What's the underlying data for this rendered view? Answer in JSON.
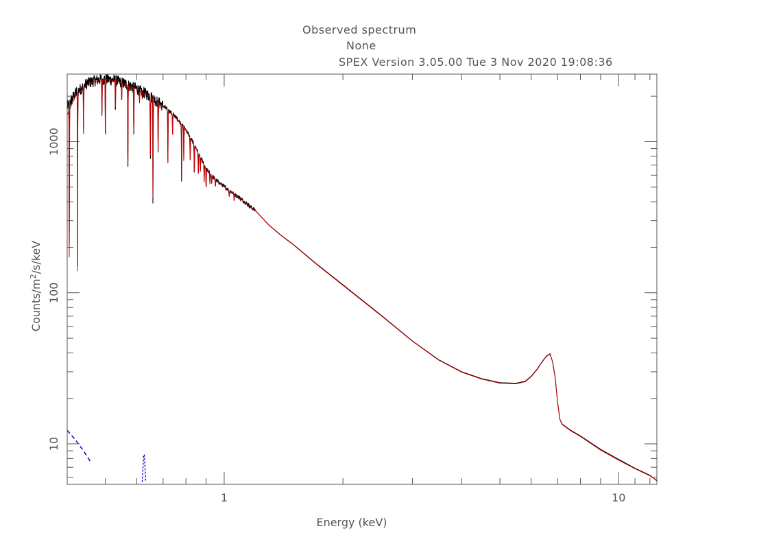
{
  "header": {
    "title": "Observed spectrum",
    "subtitle": "None",
    "version_line": "SPEX Version 3.05.00  Tue  3 Nov 2020 19:08:36"
  },
  "colors": {
    "data": "#000000",
    "model": "#cc0000",
    "component": "#0000cc",
    "axes": "#555555"
  },
  "chart_data": {
    "type": "line",
    "xlabel": "Energy (keV)",
    "ylabel_prefix": "Counts/m",
    "ylabel_sup": "2",
    "ylabel_suffix": "/s/keV",
    "xscale": "log",
    "yscale": "log",
    "xlim": [
      0.4,
      12.5
    ],
    "ylim": [
      5.4,
      2800
    ],
    "x_tick_labels": [
      {
        "value": 1,
        "label": "1"
      },
      {
        "value": 10,
        "label": "10"
      }
    ],
    "y_tick_labels": [
      {
        "value": 10,
        "label": "10"
      },
      {
        "value": 100,
        "label": "100"
      },
      {
        "value": 1000,
        "label": "1000"
      }
    ],
    "series": [
      {
        "role": "data",
        "x": [
          0.4,
          0.42,
          0.45,
          0.48,
          0.5,
          0.53,
          0.56,
          0.6,
          0.65,
          0.7,
          0.75,
          0.8,
          0.85,
          0.9,
          0.95,
          1.0,
          1.1,
          1.2,
          1.3,
          1.4,
          1.5,
          1.7,
          2.0,
          2.5,
          3.0,
          3.5,
          4.0,
          4.5,
          5.0,
          5.5,
          5.8,
          6.0,
          6.2,
          6.4,
          6.55,
          6.7,
          6.8,
          6.9,
          7.0,
          7.1,
          7.2,
          7.4,
          7.6,
          8.0,
          9.0,
          10.0,
          11.0,
          12.0,
          12.5
        ],
        "y": [
          1700,
          2100,
          2450,
          2580,
          2600,
          2550,
          2420,
          2250,
          2000,
          1730,
          1480,
          1200,
          900,
          660,
          560,
          505,
          420,
          350,
          280,
          238,
          208,
          158,
          113,
          71,
          48,
          36,
          30,
          27,
          25.4,
          25.2,
          26,
          28,
          31,
          35,
          38,
          39.5,
          35,
          28,
          19,
          14.5,
          13.5,
          12.8,
          12.2,
          11.3,
          9.2,
          7.9,
          6.9,
          6.2,
          5.7
        ]
      },
      {
        "role": "model",
        "x": [
          0.4,
          0.42,
          0.45,
          0.48,
          0.5,
          0.53,
          0.56,
          0.6,
          0.65,
          0.7,
          0.75,
          0.8,
          0.85,
          0.9,
          0.95,
          1.0,
          1.1,
          1.2,
          1.3,
          1.4,
          1.5,
          1.7,
          2.0,
          2.5,
          3.0,
          3.5,
          4.0,
          4.5,
          5.0,
          5.5,
          5.8,
          6.0,
          6.2,
          6.4,
          6.55,
          6.7,
          6.8,
          6.9,
          7.0,
          7.1,
          7.2,
          7.4,
          7.6,
          8.0,
          9.0,
          10.0,
          11.0,
          12.0,
          12.5
        ],
        "y": [
          1500,
          2000,
          2380,
          2550,
          2580,
          2530,
          2400,
          2230,
          1980,
          1710,
          1460,
          1190,
          895,
          655,
          555,
          502,
          418,
          349,
          279,
          237,
          207,
          157,
          112,
          70.5,
          47.8,
          35.8,
          29.8,
          26.8,
          25.2,
          25.0,
          25.8,
          27.8,
          30.8,
          34.8,
          37.8,
          39.2,
          34.8,
          27.8,
          18.9,
          14.4,
          13.4,
          12.7,
          12.1,
          11.2,
          9.1,
          7.8,
          6.85,
          6.15,
          5.75
        ]
      },
      {
        "role": "component",
        "x": [
          0.4,
          0.42,
          0.44,
          0.46
        ],
        "y": [
          12.3,
          10.6,
          9.0,
          7.5
        ]
      }
    ],
    "absorption_lines": [
      {
        "x": 0.405,
        "depth": 0.012
      },
      {
        "x": 0.425,
        "depth": 0.04
      },
      {
        "x": 0.44,
        "depth": 0.5
      },
      {
        "x": 0.49,
        "depth": 0.55
      },
      {
        "x": 0.5,
        "depth": 0.35
      },
      {
        "x": 0.53,
        "depth": 0.62
      },
      {
        "x": 0.55,
        "depth": 0.75
      },
      {
        "x": 0.57,
        "depth": 0.2
      },
      {
        "x": 0.59,
        "depth": 0.45
      },
      {
        "x": 0.61,
        "depth": 0.82
      },
      {
        "x": 0.62,
        "depth": 0.9
      },
      {
        "x": 0.65,
        "depth": 0.38
      },
      {
        "x": 0.66,
        "depth": 0.18
      },
      {
        "x": 0.68,
        "depth": 0.48
      },
      {
        "x": 0.72,
        "depth": 0.45
      },
      {
        "x": 0.74,
        "depth": 0.72
      },
      {
        "x": 0.78,
        "depth": 0.34
      },
      {
        "x": 0.79,
        "depth": 0.6
      },
      {
        "x": 0.82,
        "depth": 0.7
      },
      {
        "x": 0.84,
        "depth": 0.62
      },
      {
        "x": 0.86,
        "depth": 0.72
      },
      {
        "x": 0.87,
        "depth": 0.8
      },
      {
        "x": 0.89,
        "depth": 0.77
      },
      {
        "x": 0.9,
        "depth": 0.73
      },
      {
        "x": 0.92,
        "depth": 0.85
      },
      {
        "x": 0.93,
        "depth": 0.88
      },
      {
        "x": 0.95,
        "depth": 0.9
      },
      {
        "x": 1.03,
        "depth": 0.9
      },
      {
        "x": 1.06,
        "depth": 0.9
      }
    ],
    "blue_feature": {
      "x": 0.62,
      "y_low": 5.6,
      "y_high": 8.5
    }
  }
}
